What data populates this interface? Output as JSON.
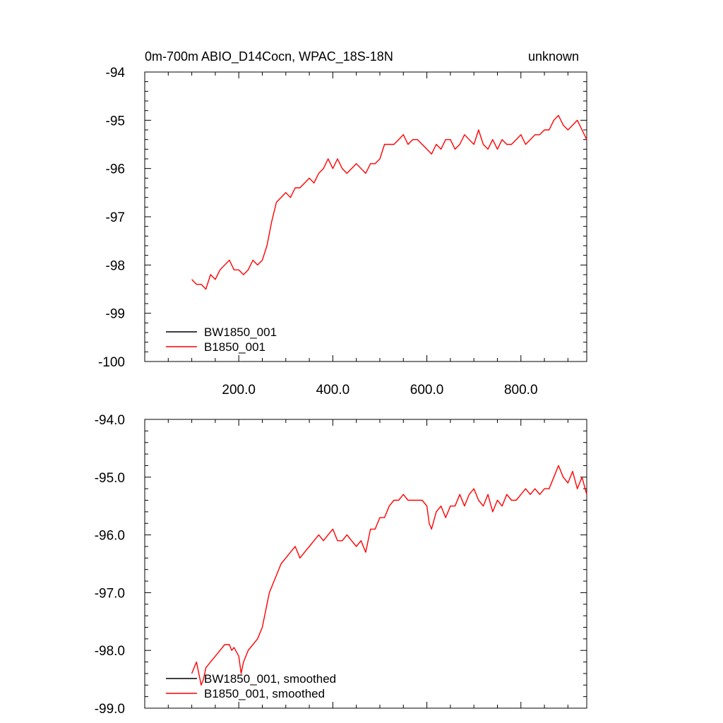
{
  "chart_data": [
    {
      "type": "line",
      "title": "0m-700m ABIO_D14Cocn, WPAC_18S-18N",
      "title_right": "unknown",
      "xlabel": "",
      "ylabel": "",
      "xlim": [
        0,
        940
      ],
      "ylim": [
        -100,
        -94
      ],
      "xticks": [
        200,
        400,
        600,
        800
      ],
      "xtick_labels": [
        "200.0",
        "400.0",
        "600.0",
        "800.0"
      ],
      "yticks": [
        -94,
        -95,
        -96,
        -97,
        -98,
        -99,
        -100
      ],
      "ytick_labels": [
        "-94",
        "-95",
        "-96",
        "-97",
        "-98",
        "-99",
        "-100"
      ],
      "grid": false,
      "legend_position": "bottom-left",
      "legend": [
        "BW1850_001",
        "B1850_001"
      ],
      "series": [
        {
          "name": "BW1850_001",
          "color": "#000000",
          "x": [],
          "y": []
        },
        {
          "name": "B1850_001",
          "color": "#ff0000",
          "x": [
            100,
            110,
            120,
            130,
            140,
            150,
            160,
            170,
            180,
            190,
            200,
            210,
            220,
            230,
            240,
            250,
            260,
            270,
            280,
            290,
            300,
            310,
            320,
            330,
            340,
            350,
            360,
            370,
            380,
            390,
            400,
            410,
            420,
            430,
            440,
            450,
            460,
            470,
            480,
            490,
            500,
            510,
            520,
            530,
            540,
            550,
            560,
            570,
            580,
            590,
            600,
            610,
            620,
            630,
            640,
            650,
            660,
            670,
            680,
            690,
            700,
            710,
            720,
            730,
            740,
            750,
            760,
            770,
            780,
            790,
            800,
            810,
            820,
            830,
            840,
            850,
            860,
            870,
            880,
            890,
            900,
            910,
            920,
            930,
            940
          ],
          "y": [
            -98.3,
            -98.4,
            -98.4,
            -98.5,
            -98.2,
            -98.3,
            -98.1,
            -98.0,
            -97.9,
            -98.1,
            -98.1,
            -98.2,
            -98.1,
            -97.9,
            -98.0,
            -97.9,
            -97.6,
            -97.1,
            -96.7,
            -96.6,
            -96.5,
            -96.6,
            -96.4,
            -96.4,
            -96.3,
            -96.2,
            -96.3,
            -96.1,
            -96.0,
            -95.8,
            -96.0,
            -95.8,
            -96.0,
            -96.1,
            -96.0,
            -95.9,
            -96.0,
            -96.1,
            -95.9,
            -95.9,
            -95.8,
            -95.5,
            -95.5,
            -95.5,
            -95.4,
            -95.3,
            -95.5,
            -95.4,
            -95.4,
            -95.5,
            -95.6,
            -95.7,
            -95.5,
            -95.6,
            -95.4,
            -95.4,
            -95.6,
            -95.5,
            -95.3,
            -95.4,
            -95.5,
            -95.2,
            -95.5,
            -95.6,
            -95.4,
            -95.6,
            -95.4,
            -95.5,
            -95.5,
            -95.4,
            -95.3,
            -95.5,
            -95.4,
            -95.3,
            -95.3,
            -95.2,
            -95.2,
            -95.0,
            -94.9,
            -95.1,
            -95.2,
            -95.1,
            -95.0,
            -95.2,
            -95.4
          ]
        }
      ]
    },
    {
      "type": "line",
      "title": "",
      "xlabel": "",
      "ylabel": "",
      "xlim": [
        0,
        940
      ],
      "ylim": [
        -99,
        -94
      ],
      "xticks": [
        200,
        400,
        600,
        800
      ],
      "yticks": [
        -94,
        -95,
        -96,
        -97,
        -98,
        -99
      ],
      "ytick_labels": [
        "-94.0",
        "-95.0",
        "-96.0",
        "-97.0",
        "-98.0",
        "-99.0"
      ],
      "grid": false,
      "legend_position": "bottom-left",
      "legend": [
        "BW1850_001, smoothed",
        "B1850_001, smoothed"
      ],
      "series": [
        {
          "name": "BW1850_001, smoothed",
          "color": "#000000",
          "x": [],
          "y": []
        },
        {
          "name": "B1850_001, smoothed",
          "color": "#ff0000",
          "x": [
            100,
            105,
            110,
            115,
            120,
            125,
            130,
            140,
            150,
            160,
            170,
            180,
            185,
            190,
            200,
            205,
            210,
            220,
            230,
            240,
            250,
            255,
            260,
            265,
            270,
            275,
            280,
            290,
            300,
            310,
            320,
            330,
            340,
            350,
            360,
            370,
            380,
            390,
            400,
            410,
            420,
            430,
            440,
            450,
            460,
            470,
            480,
            490,
            500,
            510,
            520,
            530,
            540,
            550,
            560,
            570,
            580,
            590,
            600,
            605,
            610,
            620,
            630,
            640,
            650,
            660,
            670,
            680,
            690,
            700,
            710,
            720,
            730,
            740,
            750,
            760,
            770,
            780,
            790,
            800,
            810,
            820,
            830,
            840,
            850,
            860,
            870,
            880,
            890,
            900,
            910,
            920,
            930,
            940
          ],
          "y": [
            -98.4,
            -98.3,
            -98.2,
            -98.4,
            -98.6,
            -98.5,
            -98.3,
            -98.2,
            -98.1,
            -98.0,
            -97.9,
            -97.9,
            -98.0,
            -97.95,
            -98.1,
            -98.4,
            -98.2,
            -98.0,
            -97.9,
            -97.8,
            -97.6,
            -97.4,
            -97.2,
            -97.0,
            -96.9,
            -96.8,
            -96.7,
            -96.5,
            -96.4,
            -96.3,
            -96.2,
            -96.4,
            -96.3,
            -96.2,
            -96.1,
            -96.0,
            -96.1,
            -96.0,
            -95.9,
            -96.1,
            -96.1,
            -96.0,
            -96.1,
            -96.2,
            -96.1,
            -96.3,
            -95.9,
            -95.9,
            -95.7,
            -95.7,
            -95.5,
            -95.4,
            -95.4,
            -95.3,
            -95.4,
            -95.4,
            -95.4,
            -95.4,
            -95.5,
            -95.8,
            -95.9,
            -95.6,
            -95.5,
            -95.7,
            -95.5,
            -95.5,
            -95.3,
            -95.5,
            -95.3,
            -95.2,
            -95.4,
            -95.5,
            -95.3,
            -95.6,
            -95.4,
            -95.5,
            -95.3,
            -95.4,
            -95.4,
            -95.3,
            -95.2,
            -95.3,
            -95.2,
            -95.3,
            -95.2,
            -95.2,
            -95.0,
            -94.8,
            -95.0,
            -95.1,
            -94.9,
            -95.2,
            -95.0,
            -95.3
          ]
        }
      ]
    }
  ]
}
